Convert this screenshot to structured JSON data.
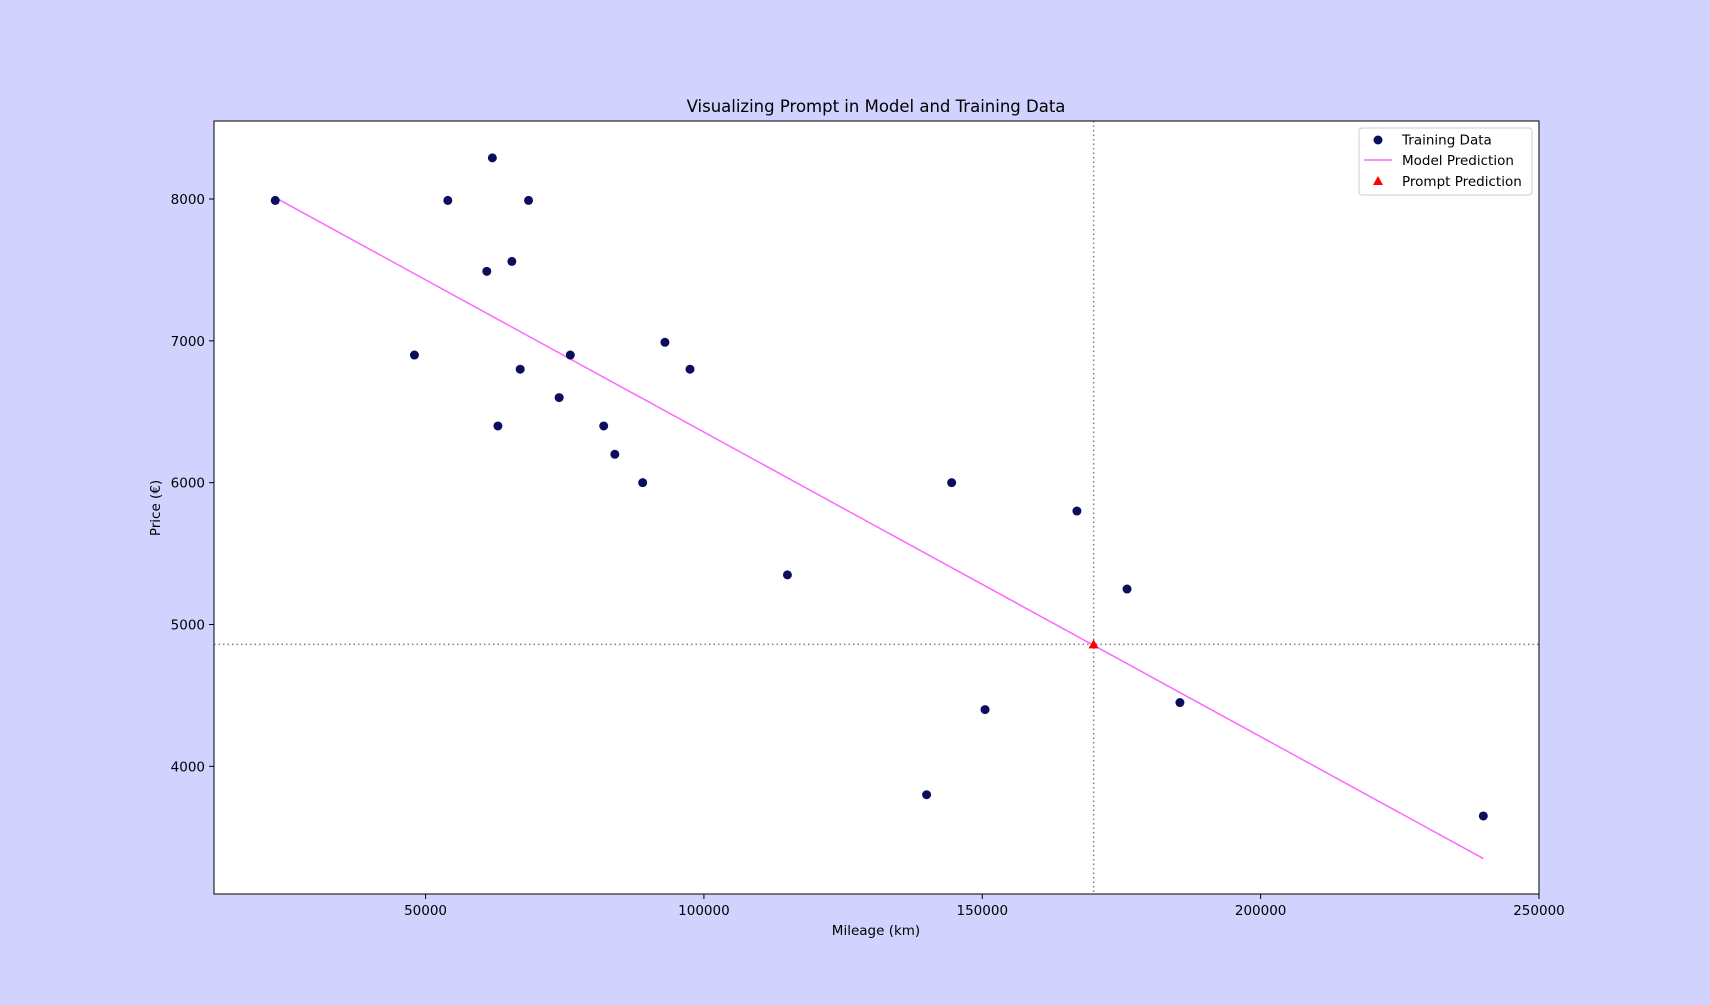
{
  "chart_data": {
    "type": "scatter",
    "title": "Visualizing Prompt in Model and Training Data",
    "xlabel": "Mileage (km)",
    "ylabel": "Price (€)",
    "xlim": [
      12000,
      250000
    ],
    "ylim": [
      3100,
      8550
    ],
    "xticks": [
      50000,
      100000,
      150000,
      200000,
      250000
    ],
    "yticks": [
      4000,
      5000,
      6000,
      7000,
      8000
    ],
    "grid": false,
    "legend_position": "top-right",
    "colors": {
      "training": "#0d0d5e",
      "model": "#ff66ff",
      "prompt": "#ff0000",
      "reference_lines": "#808080",
      "background": "#d2d2ff"
    },
    "legend": [
      "Training Data",
      "Model Prediction",
      "Prompt Prediction"
    ],
    "training_data": [
      {
        "x": 23000,
        "y": 7990
      },
      {
        "x": 48000,
        "y": 6900
      },
      {
        "x": 54000,
        "y": 7990
      },
      {
        "x": 61000,
        "y": 7490
      },
      {
        "x": 62000,
        "y": 8290
      },
      {
        "x": 63000,
        "y": 6400
      },
      {
        "x": 65500,
        "y": 7560
      },
      {
        "x": 67000,
        "y": 6800
      },
      {
        "x": 68500,
        "y": 7990
      },
      {
        "x": 74000,
        "y": 6600
      },
      {
        "x": 76000,
        "y": 6900
      },
      {
        "x": 82000,
        "y": 6400
      },
      {
        "x": 84000,
        "y": 6200
      },
      {
        "x": 89000,
        "y": 6000
      },
      {
        "x": 93000,
        "y": 6990
      },
      {
        "x": 97500,
        "y": 6800
      },
      {
        "x": 115000,
        "y": 5350
      },
      {
        "x": 140000,
        "y": 3800
      },
      {
        "x": 144500,
        "y": 6000
      },
      {
        "x": 150500,
        "y": 4400
      },
      {
        "x": 167000,
        "y": 5800
      },
      {
        "x": 176000,
        "y": 5250
      },
      {
        "x": 185500,
        "y": 4450
      },
      {
        "x": 240000,
        "y": 3650
      }
    ],
    "model_line": [
      {
        "x": 23000,
        "y": 8010
      },
      {
        "x": 240000,
        "y": 3350
      }
    ],
    "prompt_prediction": {
      "x": 170000,
      "y": 4860
    }
  }
}
